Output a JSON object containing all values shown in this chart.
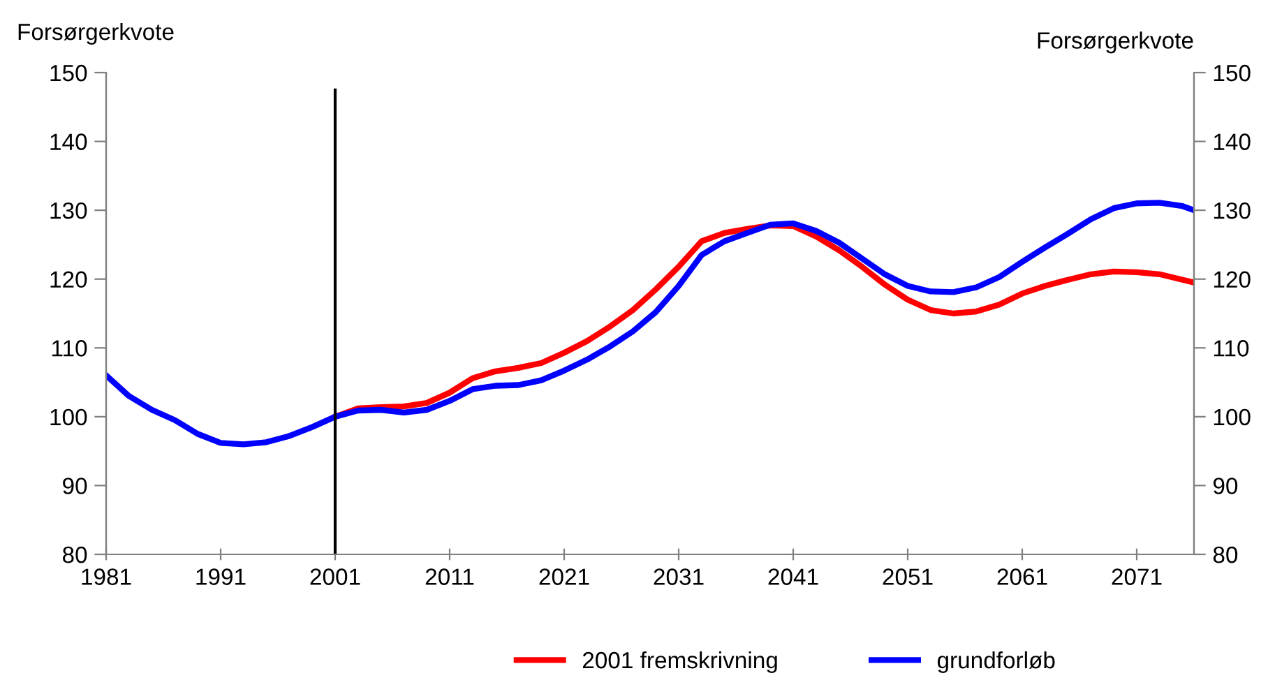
{
  "chart_data": {
    "type": "line",
    "ylabel": "Forsørgerkvote",
    "y2label": "Forsørgerkvote",
    "x": [
      1981,
      1983,
      1985,
      1987,
      1989,
      1991,
      1993,
      1995,
      1997,
      1999,
      2001,
      2003,
      2005,
      2007,
      2009,
      2011,
      2013,
      2015,
      2017,
      2019,
      2021,
      2023,
      2025,
      2027,
      2029,
      2031,
      2033,
      2035,
      2037,
      2039,
      2041,
      2043,
      2045,
      2047,
      2049,
      2051,
      2053,
      2055,
      2057,
      2059,
      2061,
      2063,
      2065,
      2067,
      2069,
      2071,
      2073,
      2075,
      2076
    ],
    "series": [
      {
        "name": "2001 fremskrivning",
        "color": "#ff0000",
        "values": [
          null,
          null,
          null,
          null,
          null,
          null,
          null,
          null,
          null,
          null,
          100,
          101.2,
          101.4,
          101.5,
          102,
          103.5,
          105.6,
          106.6,
          107.1,
          107.8,
          109.3,
          111,
          113.1,
          115.5,
          118.5,
          121.8,
          125.5,
          126.7,
          127.3,
          127.8,
          127.7,
          126.2,
          124.2,
          121.8,
          119.2,
          117,
          115.5,
          115,
          115.3,
          116.3,
          117.9,
          119,
          119.9,
          120.7,
          121.1,
          121,
          120.7,
          119.9,
          119.5
        ]
      },
      {
        "name": "grundforløb",
        "color": "#0000ff",
        "values": [
          106,
          103,
          101,
          99.5,
          97.5,
          96.2,
          96,
          96.3,
          97.2,
          98.5,
          100,
          100.9,
          101,
          100.6,
          101,
          102.3,
          104,
          104.5,
          104.6,
          105.3,
          106.7,
          108.3,
          110.2,
          112.4,
          115.2,
          119,
          123.5,
          125.5,
          126.7,
          127.9,
          128.1,
          127,
          125.3,
          123,
          120.7,
          119,
          118.2,
          118.1,
          118.8,
          120.3,
          122.5,
          124.6,
          126.6,
          128.7,
          130.3,
          131,
          131.1,
          130.6,
          130
        ]
      }
    ],
    "xlim": [
      1981,
      2076
    ],
    "xticks": [
      1981,
      1991,
      2001,
      2011,
      2021,
      2031,
      2041,
      2051,
      2061,
      2071
    ],
    "ylim": [
      80,
      150
    ],
    "yticks": [
      80,
      90,
      100,
      110,
      120,
      130,
      140,
      150
    ],
    "y2lim": [
      80,
      150
    ],
    "y2ticks": [
      80,
      90,
      100,
      110,
      120,
      130,
      140,
      150
    ],
    "ref_lines": [
      {
        "axis": "x",
        "value": 2001,
        "color": "#000000"
      }
    ],
    "grid": false,
    "legend": "bottom",
    "marker": "none",
    "line_style": "solid"
  }
}
